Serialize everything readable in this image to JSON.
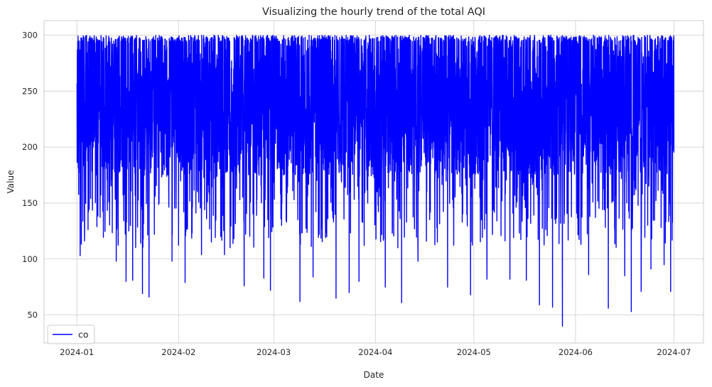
{
  "chart_data": {
    "type": "line",
    "title": "Visualizing the hourly trend of the total AQI",
    "xlabel": "Date",
    "ylabel": "Value",
    "x_ticks": [
      "2024-01",
      "2024-02",
      "2024-03",
      "2024-04",
      "2024-05",
      "2024-06",
      "2024-07"
    ],
    "y_ticks": [
      "50",
      "100",
      "150",
      "200",
      "250",
      "300"
    ],
    "xlim": [
      "2023-12-22",
      "2024-07-10"
    ],
    "ylim": [
      25,
      313
    ],
    "x_range": [
      "2024-01-01",
      "2024-07-01"
    ],
    "grid": true,
    "legend": {
      "position": "lower-left",
      "entries": [
        "co"
      ]
    },
    "series": [
      {
        "name": "co",
        "color": "#0000ff",
        "frequency": "hourly",
        "value_range": [
          40,
          300
        ],
        "typical_band": [
          175,
          300
        ],
        "notable_dips": [
          {
            "x": "2024-01-02",
            "y": 103
          },
          {
            "x": "2024-01-13",
            "y": 98
          },
          {
            "x": "2024-01-16",
            "y": 80
          },
          {
            "x": "2024-01-18",
            "y": 81
          },
          {
            "x": "2024-01-21",
            "y": 69
          },
          {
            "x": "2024-01-23",
            "y": 66
          },
          {
            "x": "2024-01-30",
            "y": 98
          },
          {
            "x": "2024-02-03",
            "y": 79
          },
          {
            "x": "2024-02-08",
            "y": 104
          },
          {
            "x": "2024-02-15",
            "y": 104
          },
          {
            "x": "2024-02-21",
            "y": 76
          },
          {
            "x": "2024-02-27",
            "y": 83
          },
          {
            "x": "2024-02-29",
            "y": 72
          },
          {
            "x": "2024-03-09",
            "y": 62
          },
          {
            "x": "2024-03-13",
            "y": 84
          },
          {
            "x": "2024-03-20",
            "y": 65
          },
          {
            "x": "2024-03-24",
            "y": 70
          },
          {
            "x": "2024-03-27",
            "y": 80
          },
          {
            "x": "2024-04-04",
            "y": 75
          },
          {
            "x": "2024-04-09",
            "y": 61
          },
          {
            "x": "2024-04-14",
            "y": 98
          },
          {
            "x": "2024-04-23",
            "y": 75
          },
          {
            "x": "2024-04-30",
            "y": 68
          },
          {
            "x": "2024-05-05",
            "y": 82
          },
          {
            "x": "2024-05-12",
            "y": 82
          },
          {
            "x": "2024-05-17",
            "y": 81
          },
          {
            "x": "2024-05-21",
            "y": 59
          },
          {
            "x": "2024-05-25",
            "y": 57
          },
          {
            "x": "2024-05-28",
            "y": 39
          },
          {
            "x": "2024-06-05",
            "y": 86
          },
          {
            "x": "2024-06-11",
            "y": 56
          },
          {
            "x": "2024-06-16",
            "y": 85
          },
          {
            "x": "2024-06-18",
            "y": 53
          },
          {
            "x": "2024-06-21",
            "y": 71
          },
          {
            "x": "2024-06-24",
            "y": 91
          },
          {
            "x": "2024-06-28",
            "y": 95
          },
          {
            "x": "2024-06-30",
            "y": 71
          }
        ]
      }
    ]
  }
}
